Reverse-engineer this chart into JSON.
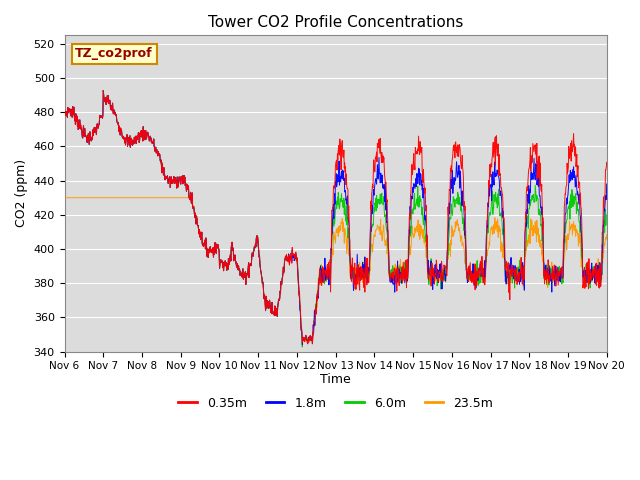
{
  "title": "Tower CO2 Profile Concentrations",
  "xlabel": "Time",
  "ylabel": "CO2 (ppm)",
  "ylim": [
    340,
    525
  ],
  "yticks": [
    340,
    360,
    380,
    400,
    420,
    440,
    460,
    480,
    500,
    520
  ],
  "legend_label": "TZ_co2prof",
  "series_labels": [
    "0.35m",
    "1.8m",
    "6.0m",
    "23.5m"
  ],
  "series_colors": [
    "#ff0000",
    "#0000ff",
    "#00cc00",
    "#ff9900"
  ],
  "plot_bg_color": "#dcdcdc",
  "n_days": 14,
  "start_day": 6,
  "end_day": 20,
  "n_per_day": 96
}
